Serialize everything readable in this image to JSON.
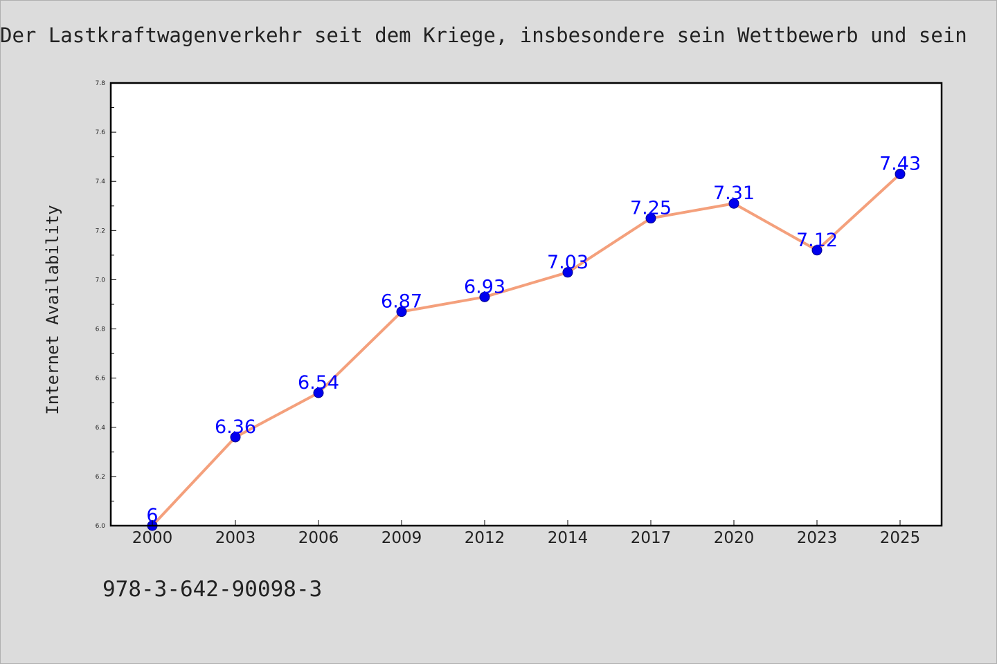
{
  "chart_data": {
    "type": "line",
    "title": "Der Lastkraftwagenverkehr seit dem Kriege, insbesondere sein Wettbewerb und sein",
    "xlabel": "",
    "ylabel": "Internet Availability",
    "categories": [
      "2000",
      "2003",
      "2006",
      "2009",
      "2012",
      "2014",
      "2017",
      "2020",
      "2023",
      "2025"
    ],
    "series": [
      {
        "values": [
          6.0,
          6.36,
          6.54,
          6.87,
          6.93,
          7.03,
          7.25,
          7.31,
          7.12,
          7.43
        ]
      }
    ],
    "data_labels": [
      "6",
      "6.36",
      "6.54",
      "6.87",
      "6.93",
      "7.03",
      "7.25",
      "7.31",
      "7.12",
      "7.43"
    ],
    "ylim": [
      6.0,
      7.8
    ],
    "yticks": [
      "6.0",
      "6.2",
      "6.4",
      "6.6",
      "6.8",
      "7.0",
      "7.2",
      "7.4",
      "7.6",
      "7.8"
    ],
    "grid": false,
    "legend": "none",
    "colors": {
      "line": "#f4a07c",
      "marker": "#0000ee",
      "label": "#0000ff",
      "plot_background": "#ffffff",
      "figure_background": "#dcdcdc"
    }
  },
  "footer": {
    "code": "978-3-642-90098-3"
  }
}
